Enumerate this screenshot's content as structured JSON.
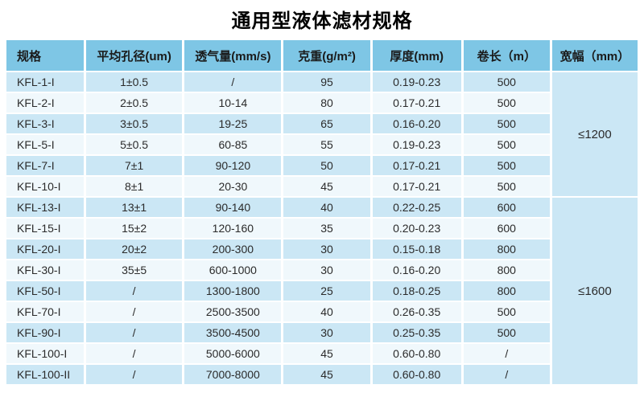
{
  "title": "通用型液体滤材规格",
  "table": {
    "columns": [
      "规格",
      "平均孔径(um)",
      "透气量(mm/s)",
      "克重(g/m²)",
      "厚度(mm)",
      "卷长（m）",
      "宽幅（mm）"
    ],
    "rows": [
      [
        "KFL-1-I",
        "1±0.5",
        "/",
        "95",
        "0.19-0.23",
        "500"
      ],
      [
        "KFL-2-I",
        "2±0.5",
        "10-14",
        "80",
        "0.17-0.21",
        "500"
      ],
      [
        "KFL-3-I",
        "3±0.5",
        "19-25",
        "65",
        "0.16-0.20",
        "500"
      ],
      [
        "KFL-5-I",
        "5±0.5",
        "60-85",
        "55",
        "0.19-0.23",
        "500"
      ],
      [
        "KFL-7-I",
        "7±1",
        "90-120",
        "50",
        "0.17-0.21",
        "500"
      ],
      [
        "KFL-10-I",
        "8±1",
        "20-30",
        "45",
        "0.17-0.21",
        "500"
      ],
      [
        "KFL-13-I",
        "13±1",
        "90-140",
        "40",
        "0.22-0.25",
        "600"
      ],
      [
        "KFL-15-I",
        "15±2",
        "120-160",
        "35",
        "0.20-0.23",
        "600"
      ],
      [
        "KFL-20-I",
        "20±2",
        "200-300",
        "30",
        "0.15-0.18",
        "800"
      ],
      [
        "KFL-30-I",
        "35±5",
        "600-1000",
        "30",
        "0.16-0.20",
        "800"
      ],
      [
        "KFL-50-I",
        "/",
        "1300-1800",
        "25",
        "0.18-0.25",
        "800"
      ],
      [
        "KFL-70-I",
        "/",
        "2500-3500",
        "40",
        "0.26-0.35",
        "500"
      ],
      [
        "KFL-90-I",
        "/",
        "3500-4500",
        "30",
        "0.25-0.35",
        "500"
      ],
      [
        "KFL-100-I",
        "/",
        "5000-6000",
        "45",
        "0.60-0.80",
        "/"
      ],
      [
        "KFL-100-II",
        "/",
        "7000-8000",
        "45",
        "0.60-0.80",
        "/"
      ]
    ],
    "groups": [
      {
        "label": "≤1200",
        "span": 6
      },
      {
        "label": "≤1600",
        "span": 9
      }
    ]
  },
  "colors": {
    "header_bg": "#7ec6e5",
    "row_odd_bg": "#cbe7f5",
    "row_even_bg": "#f0f8fc",
    "title_text": "#000000",
    "cell_text": "#2b2b2b"
  }
}
